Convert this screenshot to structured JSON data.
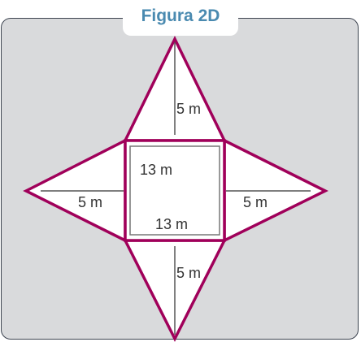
{
  "title": "Figura 2D",
  "labels": {
    "top_height": "5 m",
    "left_height": "5 m",
    "right_height": "5 m",
    "bottom_height": "5 m",
    "square_side_top": "13 m",
    "square_side_bottom": "13 m"
  },
  "colors": {
    "outline": "#a0005a",
    "title": "#4a8ab0",
    "panel": "#d9dadc",
    "measure_line": "#555555"
  }
}
